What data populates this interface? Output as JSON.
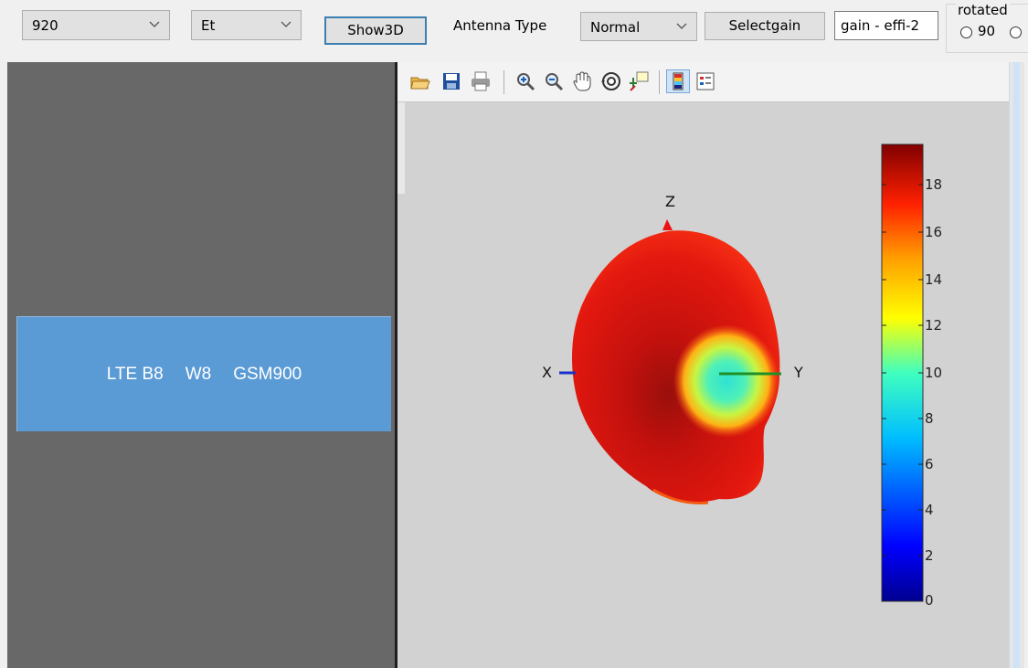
{
  "toolbar": {
    "frequency_value": "920",
    "component_value": "Et",
    "show3d_label": "Show3D",
    "antenna_type_label": "Antenna Type",
    "antenna_type_value": "Normal",
    "selectgain_label": "Selectgain",
    "gain_field_value": "gain - effi-2",
    "rotated_label": "rotated",
    "rotate_option_90": "90"
  },
  "bands": {
    "band1": "LTE B8",
    "band2": "W8",
    "band3": "GSM900"
  },
  "figure": {
    "toolbar_icons": [
      "open-icon",
      "save-icon",
      "print-icon",
      "zoom-in-icon",
      "zoom-out-icon",
      "pan-hand-icon",
      "rotate-3d-icon",
      "data-cursor-icon",
      "toggle-colorbar-icon",
      "insert-legend-icon"
    ],
    "axis_x": "X",
    "axis_y": "Y",
    "axis_z": "Z",
    "colorbar_ticks": [
      "18",
      "16",
      "14",
      "12",
      "10",
      "8",
      "6",
      "4",
      "2",
      "0"
    ]
  },
  "colors": {
    "band_box": "#5b9bd5",
    "left_panel": "#686868",
    "figure_bg": "#d2d2d2",
    "pattern_main": "#e6190f"
  }
}
